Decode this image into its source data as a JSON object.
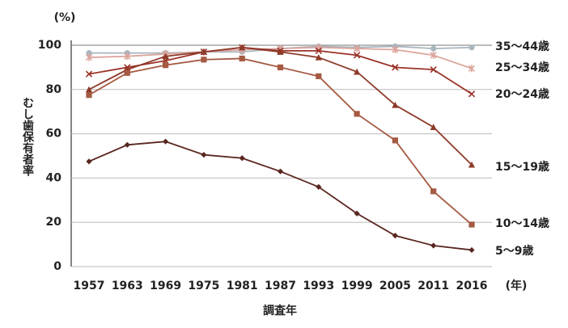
{
  "chart_data": {
    "type": "line",
    "y_label": "むし歯保有者率",
    "y_unit": "(%)",
    "x_label": "調査年",
    "x_unit": "(年)",
    "categories": [
      "1957",
      "1963",
      "1969",
      "1975",
      "1981",
      "1987",
      "1993",
      "1999",
      "2005",
      "2011",
      "2016"
    ],
    "ylim": [
      0,
      100
    ],
    "yticks": [
      0,
      20,
      40,
      60,
      80,
      100
    ],
    "grid": true,
    "series": [
      {
        "name": "35〜44歳",
        "color": "#a9b6be",
        "marker": "circle",
        "values": [
          96.5,
          96.5,
          96.5,
          97,
          97,
          98.5,
          99.5,
          99,
          99.5,
          98.5,
          99
        ]
      },
      {
        "name": "25〜34歳",
        "color": "#dca69e",
        "marker": "asterisk",
        "values": [
          94.5,
          95,
          96,
          97,
          98,
          98.5,
          99,
          98.5,
          98,
          95.5,
          89.5
        ]
      },
      {
        "name": "20〜24歳",
        "color": "#9b3328",
        "marker": "x",
        "values": [
          87,
          90,
          93,
          97,
          99,
          97.5,
          97.5,
          95.5,
          90,
          89,
          78
        ]
      },
      {
        "name": "15〜19歳",
        "color": "#8e3a2a",
        "marker": "triangle",
        "values": [
          80,
          89,
          95,
          97,
          99,
          97,
          94.5,
          88,
          73,
          63,
          46
        ]
      },
      {
        "name": "10〜14歳",
        "color": "#a55a42",
        "marker": "square",
        "values": [
          77.5,
          87.5,
          91,
          93.5,
          94,
          90,
          86,
          69,
          57,
          34,
          19
        ]
      },
      {
        "name": "5〜9歳",
        "color": "#5a2620",
        "marker": "diamond",
        "values": [
          47.5,
          55,
          56.5,
          50.5,
          49,
          43,
          36,
          24,
          14,
          9.5,
          7.5
        ]
      }
    ]
  }
}
